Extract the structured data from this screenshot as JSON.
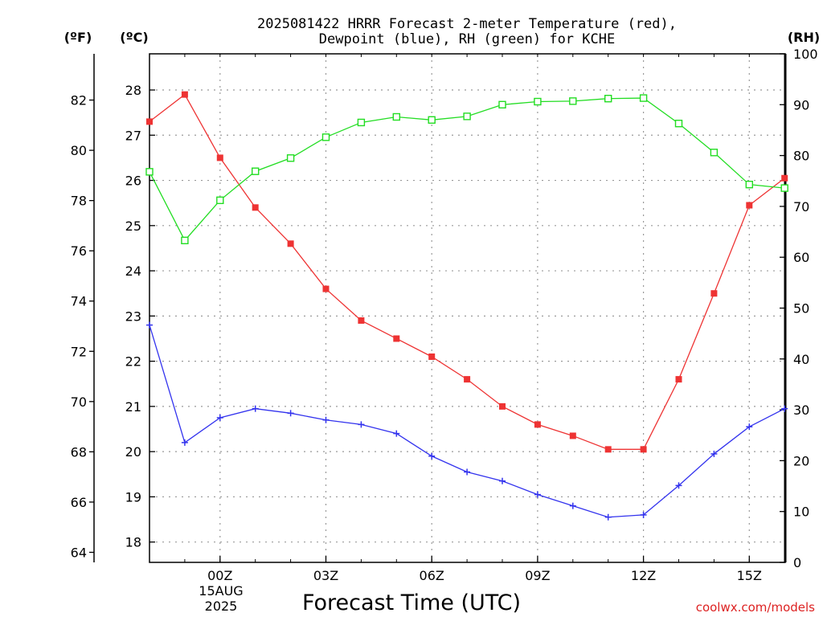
{
  "chart_data": {
    "type": "line",
    "title_line1": "2025081422 HRRR Forecast 2-meter Temperature (red),",
    "title_line2": "Dewpoint (blue), RH (green) for KCHE",
    "xlabel": "Forecast Time (UTC)",
    "date_label_day": "15AUG",
    "date_label_year": "2025",
    "credit": "coolwx.com/models",
    "unit_left_f": "(ºF)",
    "unit_left_c": "(ºC)",
    "unit_right_rh": "(RH)",
    "x_hours": [
      22,
      23,
      0,
      1,
      2,
      3,
      4,
      5,
      6,
      7,
      8,
      9,
      10,
      11,
      12,
      13,
      14,
      15,
      16
    ],
    "x_tick_labels": [
      {
        "hour": 0,
        "label": "00Z"
      },
      {
        "hour": 3,
        "label": "03Z"
      },
      {
        "hour": 6,
        "label": "06Z"
      },
      {
        "hour": 9,
        "label": "09Z"
      },
      {
        "hour": 12,
        "label": "12Z"
      },
      {
        "hour": 15,
        "label": "15Z"
      }
    ],
    "ylim_c": [
      17.55,
      28.8
    ],
    "ylim_f": [
      63.6,
      83.84
    ],
    "ylim_rh": [
      0,
      100
    ],
    "y_ticks_c": [
      18,
      19,
      20,
      21,
      22,
      23,
      24,
      25,
      26,
      27,
      28
    ],
    "y_ticks_f": [
      64,
      66,
      68,
      70,
      72,
      74,
      76,
      78,
      80,
      82
    ],
    "y_ticks_rh": [
      0,
      10,
      20,
      30,
      40,
      50,
      60,
      70,
      80,
      90,
      100
    ],
    "grid": true,
    "series": [
      {
        "name": "Temperature",
        "color": "#ee3333",
        "marker": "filled-square",
        "values_c": [
          27.3,
          27.9,
          26.5,
          25.4,
          24.6,
          23.6,
          22.9,
          22.5,
          22.1,
          21.6,
          21.0,
          20.6,
          20.35,
          20.05,
          20.05,
          21.6,
          23.5,
          25.45,
          26.05
        ]
      },
      {
        "name": "Dewpoint",
        "color": "#3333ee",
        "marker": "plus",
        "values_c": [
          22.8,
          20.2,
          20.75,
          20.95,
          20.85,
          20.7,
          20.6,
          20.4,
          19.9,
          19.55,
          19.35,
          19.05,
          18.8,
          18.55,
          18.6,
          19.25,
          19.95,
          20.55,
          20.95
        ]
      },
      {
        "name": "RH",
        "color": "#22dd22",
        "marker": "open-square",
        "values_rh": [
          76.8,
          63.3,
          71.2,
          76.9,
          79.5,
          83.6,
          86.5,
          87.6,
          87.0,
          87.7,
          90.0,
          90.6,
          90.7,
          91.2,
          91.3,
          86.3,
          80.6,
          74.3,
          73.6
        ]
      }
    ]
  }
}
